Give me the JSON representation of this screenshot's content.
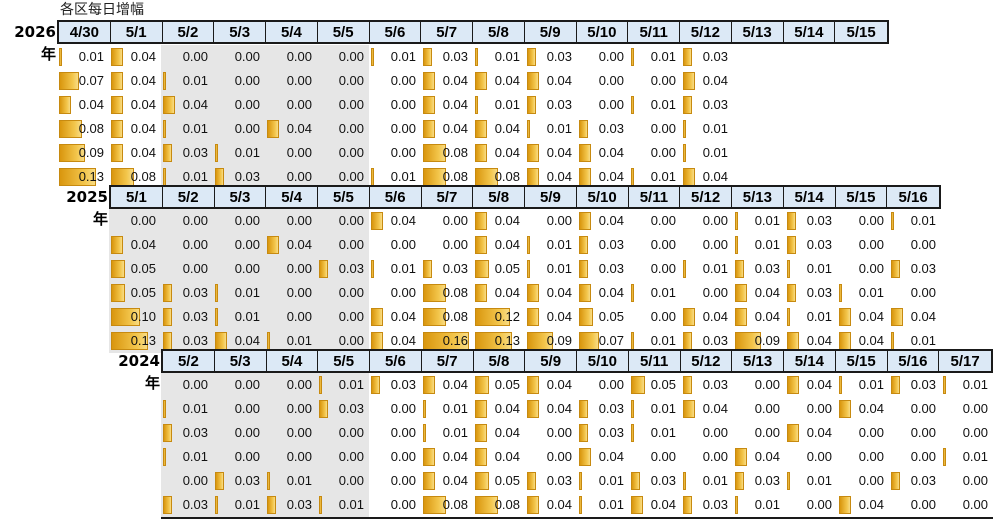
{
  "title": "各区每日增幅",
  "bar_color": "#f2c043",
  "header_bg": "#dce9f6",
  "shade_bg": "#e6e6e6",
  "chart_data": {
    "type": "table",
    "bar_scale_max": 0.16,
    "sections": [
      {
        "year": "2026年",
        "dates": [
          "4/30",
          "5/1",
          "5/2",
          "5/3",
          "5/4",
          "5/5",
          "5/6",
          "5/7",
          "5/8",
          "5/9",
          "5/10",
          "5/11",
          "5/12",
          "5/13",
          "5/14",
          "5/15"
        ],
        "shaded_dates": [
          "5/2",
          "5/3",
          "5/4",
          "5/5"
        ],
        "rows": [
          [
            "0.01",
            "0.04",
            "0.00",
            "0.00",
            "0.00",
            "0.00",
            "0.01",
            "0.03",
            "0.01",
            "0.03",
            "0.00",
            "0.01",
            "0.03"
          ],
          [
            "0.07",
            "0.04",
            "0.01",
            "0.00",
            "0.00",
            "0.00",
            "0.00",
            "0.04",
            "0.04",
            "0.04",
            "0.00",
            "0.00",
            "0.04"
          ],
          [
            "0.04",
            "0.04",
            "0.04",
            "0.00",
            "0.00",
            "0.00",
            "0.00",
            "0.04",
            "0.01",
            "0.03",
            "0.00",
            "0.01",
            "0.03"
          ],
          [
            "0.08",
            "0.04",
            "0.01",
            "0.00",
            "0.04",
            "0.00",
            "0.00",
            "0.04",
            "0.04",
            "0.01",
            "0.03",
            "0.00",
            "0.01"
          ],
          [
            "0.09",
            "0.04",
            "0.03",
            "0.01",
            "0.00",
            "0.00",
            "0.00",
            "0.08",
            "0.04",
            "0.04",
            "0.04",
            "0.00",
            "0.01"
          ],
          [
            "0.13",
            "0.08",
            "0.01",
            "0.03",
            "0.00",
            "0.00",
            "0.01",
            "0.08",
            "0.08",
            "0.04",
            "0.04",
            "0.01",
            "0.04"
          ]
        ]
      },
      {
        "year": "2025年",
        "dates": [
          "5/1",
          "5/2",
          "5/3",
          "5/4",
          "5/5",
          "5/6",
          "5/7",
          "5/8",
          "5/9",
          "5/10",
          "5/11",
          "5/12",
          "5/13",
          "5/14",
          "5/15",
          "5/16"
        ],
        "shaded_dates": [
          "5/1",
          "5/2",
          "5/3",
          "5/4",
          "5/5"
        ],
        "rows": [
          [
            "0.00",
            "0.00",
            "0.00",
            "0.00",
            "0.00",
            "0.04",
            "0.00",
            "0.04",
            "0.00",
            "0.04",
            "0.00",
            "0.00",
            "0.01",
            "0.03",
            "0.00",
            "0.01"
          ],
          [
            "0.04",
            "0.00",
            "0.00",
            "0.04",
            "0.00",
            "0.00",
            "0.00",
            "0.04",
            "0.01",
            "0.03",
            "0.00",
            "0.00",
            "0.01",
            "0.03",
            "0.00",
            "0.00"
          ],
          [
            "0.05",
            "0.00",
            "0.00",
            "0.00",
            "0.03",
            "0.01",
            "0.03",
            "0.05",
            "0.01",
            "0.03",
            "0.00",
            "0.01",
            "0.03",
            "0.01",
            "0.00",
            "0.03"
          ],
          [
            "0.05",
            "0.03",
            "0.01",
            "0.00",
            "0.00",
            "0.00",
            "0.08",
            "0.04",
            "0.04",
            "0.04",
            "0.01",
            "0.00",
            "0.04",
            "0.03",
            "0.01",
            "0.00"
          ],
          [
            "0.10",
            "0.03",
            "0.01",
            "0.00",
            "0.00",
            "0.04",
            "0.08",
            "0.12",
            "0.04",
            "0.05",
            "0.00",
            "0.04",
            "0.04",
            "0.01",
            "0.04",
            "0.04"
          ],
          [
            "0.13",
            "0.03",
            "0.04",
            "0.01",
            "0.00",
            "0.04",
            "0.16",
            "0.13",
            "0.09",
            "0.07",
            "0.01",
            "0.03",
            "0.09",
            "0.04",
            "0.04",
            "0.01"
          ]
        ]
      },
      {
        "year": "2024年",
        "dates": [
          "5/2",
          "5/3",
          "5/4",
          "5/5",
          "5/6",
          "5/7",
          "5/8",
          "5/9",
          "5/10",
          "5/11",
          "5/12",
          "5/13",
          "5/14",
          "5/15",
          "5/16",
          "5/17"
        ],
        "shaded_dates": [
          "5/2",
          "5/3",
          "5/4",
          "5/5"
        ],
        "rows": [
          [
            "0.00",
            "0.00",
            "0.00",
            "0.01",
            "0.03",
            "0.04",
            "0.05",
            "0.04",
            "0.00",
            "0.05",
            "0.03",
            "0.00",
            "0.04",
            "0.01",
            "0.03",
            "0.01"
          ],
          [
            "0.01",
            "0.00",
            "0.00",
            "0.03",
            "0.00",
            "0.01",
            "0.04",
            "0.04",
            "0.03",
            "0.01",
            "0.04",
            "0.00",
            "0.00",
            "0.04",
            "0.00",
            "0.00"
          ],
          [
            "0.03",
            "0.00",
            "0.00",
            "0.00",
            "0.00",
            "0.01",
            "0.04",
            "0.00",
            "0.03",
            "0.01",
            "0.00",
            "0.00",
            "0.04",
            "0.00",
            "0.00",
            "0.00"
          ],
          [
            "0.01",
            "0.00",
            "0.00",
            "0.00",
            "0.00",
            "0.04",
            "0.04",
            "0.00",
            "0.04",
            "0.00",
            "0.00",
            "0.04",
            "0.00",
            "0.00",
            "0.00",
            "0.01"
          ],
          [
            "0.00",
            "0.03",
            "0.01",
            "0.00",
            "0.00",
            "0.04",
            "0.05",
            "0.03",
            "0.01",
            "0.03",
            "0.01",
            "0.03",
            "0.01",
            "0.00",
            "0.03",
            "0.00"
          ],
          [
            "0.03",
            "0.01",
            "0.03",
            "0.01",
            "0.00",
            "0.08",
            "0.08",
            "0.04",
            "0.01",
            "0.04",
            "0.03",
            "0.01",
            "0.00",
            "0.04",
            "0.00",
            "0.00"
          ]
        ]
      }
    ]
  }
}
